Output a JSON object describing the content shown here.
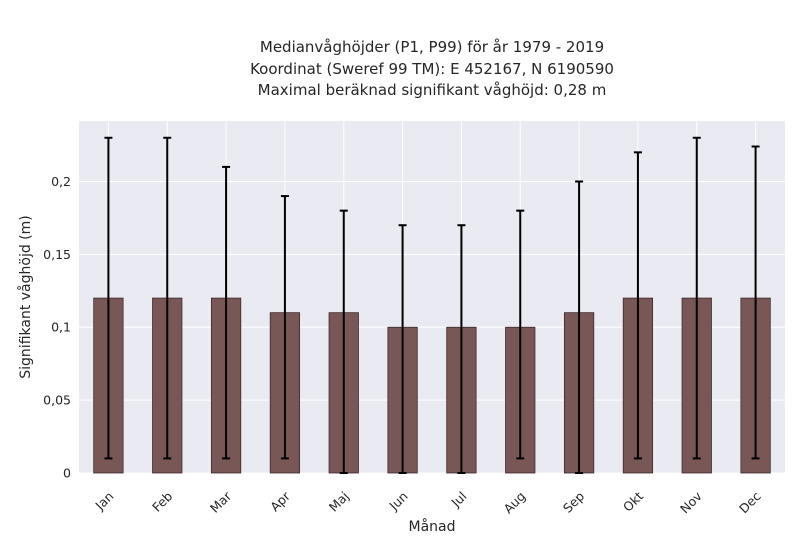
{
  "chart_data": {
    "type": "bar",
    "title_lines": [
      "Medianvåghöjder (P1, P99) för år 1979 - 2019",
      "Koordinat (Sweref 99 TM): E 452167, N 6190590",
      "Maximal beräknad signifikant våghöjd: 0,28 m"
    ],
    "xlabel": "Månad",
    "ylabel": "Signifikant våghöjd (m)",
    "categories": [
      "Jan",
      "Feb",
      "Mar",
      "Apr",
      "Maj",
      "Jun",
      "Jul",
      "Aug",
      "Sep",
      "Okt",
      "Nov",
      "Dec"
    ],
    "values": [
      0.12,
      0.12,
      0.12,
      0.11,
      0.11,
      0.1,
      0.1,
      0.1,
      0.11,
      0.12,
      0.12,
      0.12
    ],
    "p1": [
      0.01,
      0.01,
      0.01,
      0.01,
      0.0,
      0.0,
      0.0,
      0.01,
      0.0,
      0.01,
      0.01,
      0.01
    ],
    "p99": [
      0.23,
      0.23,
      0.21,
      0.19,
      0.18,
      0.17,
      0.17,
      0.18,
      0.2,
      0.22,
      0.23,
      0.224
    ],
    "ylim": [
      0,
      0.2415
    ],
    "yticks": [
      0,
      0.05,
      0.1,
      0.15,
      0.2
    ],
    "ytick_labels": [
      "0",
      "0,05",
      "0,1",
      "0,15",
      "0,2"
    ],
    "grid": true,
    "colors": {
      "bar": "#7a5757",
      "bar_edge": "#3a2a2a",
      "error": "#000000",
      "plot_bg": "#eaeaf2",
      "grid": "#ffffff"
    }
  }
}
